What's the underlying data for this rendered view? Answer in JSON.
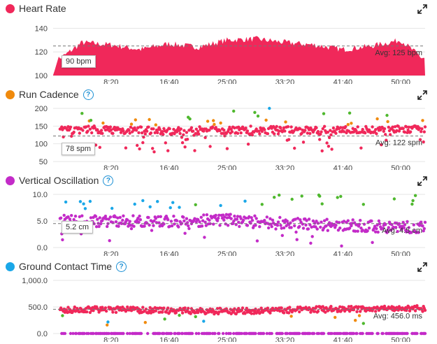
{
  "colors": {
    "red": "#f0285a",
    "orange": "#f08a0c",
    "purple": "#c32bc8",
    "blue": "#1aa7e8",
    "green": "#4fb82e"
  },
  "panels": [
    {
      "title": "Heart Rate",
      "dot": "#f0285a",
      "help": false,
      "y_ticks": [
        "140",
        "120",
        "100"
      ],
      "callout": "90 bpm",
      "avg": "Avg: 125 bpm"
    },
    {
      "title": "Run Cadence",
      "dot": "#f08a0c",
      "help": true,
      "y_ticks": [
        "200",
        "150",
        "100",
        "50"
      ],
      "callout": "78 spm",
      "avg": "Avg: 122 spm"
    },
    {
      "title": "Vertical Oscillation",
      "dot": "#c32bc8",
      "help": true,
      "y_ticks": [
        "10.0",
        "5.0",
        "0.0"
      ],
      "callout": "5.2 cm",
      "avg": "Avg: 4.5 cm"
    },
    {
      "title": "Ground Contact Time",
      "dot": "#1aa7e8",
      "help": true,
      "y_ticks": [
        "1,000.0",
        "500.0",
        "0.0"
      ],
      "callout": null,
      "avg": "Avg: 456.0 ms"
    }
  ],
  "x_ticks": [
    "8:20",
    "16:40",
    "25:00",
    "33:20",
    "41:40",
    "50:00"
  ],
  "help_glyph": "?",
  "chart_data": [
    {
      "type": "area",
      "title": "Heart Rate",
      "ylim": [
        100,
        145
      ],
      "avg": 125,
      "x": [
        "0:00",
        "4:10",
        "8:20",
        "12:30",
        "16:40",
        "20:50",
        "25:00",
        "29:10",
        "33:20",
        "37:30",
        "41:40",
        "45:50",
        "50:00",
        "53:00"
      ],
      "values": [
        110,
        128,
        126,
        122,
        127,
        124,
        130,
        131,
        128,
        126,
        122,
        125,
        130,
        115
      ]
    },
    {
      "type": "scatter",
      "title": "Run Cadence",
      "ylim": [
        50,
        200
      ],
      "avg": 122,
      "x": [
        "8:20",
        "16:40",
        "25:00",
        "33:20",
        "41:40",
        "50:00"
      ],
      "values": [
        140,
        135,
        140,
        138,
        138,
        140
      ]
    },
    {
      "type": "scatter",
      "title": "Vertical Oscillation",
      "ylim": [
        0,
        10
      ],
      "avg": 4.5,
      "x": [
        "8:20",
        "16:40",
        "25:00",
        "33:20",
        "41:40",
        "50:00"
      ],
      "values": [
        5.0,
        4.8,
        5.2,
        4.5,
        4.2,
        3.8
      ]
    },
    {
      "type": "scatter",
      "title": "Ground Contact Time",
      "ylim": [
        0,
        1000
      ],
      "avg": 456.0,
      "x": [
        "8:20",
        "16:40",
        "25:00",
        "33:20",
        "41:40",
        "50:00"
      ],
      "values": [
        450,
        430,
        420,
        440,
        460,
        470
      ]
    }
  ]
}
